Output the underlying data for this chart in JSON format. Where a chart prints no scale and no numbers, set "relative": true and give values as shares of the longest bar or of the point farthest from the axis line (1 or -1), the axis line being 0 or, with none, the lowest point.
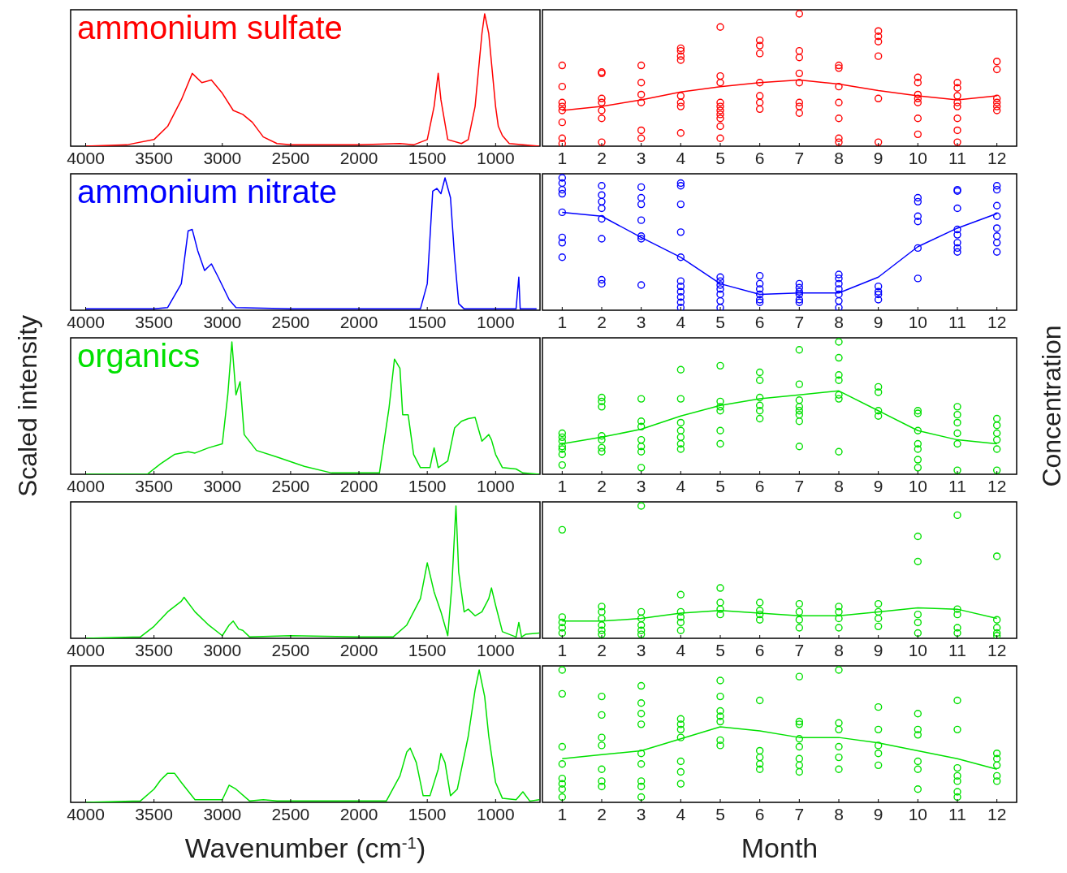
{
  "chart_data": [
    {
      "type": "line",
      "title": "ammonium sulfate",
      "color": "#ff0000",
      "relative": true,
      "xlim": [
        4110,
        675
      ],
      "xticks": [
        4000,
        3500,
        3000,
        2500,
        2000,
        1500,
        1000
      ],
      "x": [
        4000,
        3700,
        3500,
        3400,
        3300,
        3220,
        3150,
        3080,
        3000,
        2920,
        2850,
        2780,
        2700,
        2600,
        2500,
        2000,
        1700,
        1600,
        1500,
        1450,
        1420,
        1400,
        1350,
        1250,
        1200,
        1150,
        1100,
        1080,
        1050,
        1000,
        980,
        950,
        900,
        800,
        680
      ],
      "values": [
        0,
        0.01,
        0.05,
        0.15,
        0.35,
        0.55,
        0.48,
        0.5,
        0.4,
        0.27,
        0.24,
        0.18,
        0.07,
        0.02,
        0.01,
        0.01,
        0.02,
        0.01,
        0.05,
        0.3,
        0.55,
        0.35,
        0.05,
        0.02,
        0.05,
        0.3,
        0.85,
        1,
        0.85,
        0.3,
        0.15,
        0.08,
        0.02,
        0.01,
        0
      ]
    },
    {
      "type": "scatter",
      "relative": true,
      "xlim": [
        0.5,
        12.5
      ],
      "xticks": [
        1,
        2,
        3,
        4,
        5,
        6,
        7,
        8,
        9,
        10,
        11,
        12
      ],
      "series": [
        {
          "marker": "circle",
          "color": "#ff0000",
          "x": [
            1,
            1,
            1,
            1,
            1,
            1,
            1,
            1,
            2,
            2,
            2,
            2,
            2,
            2,
            2,
            3,
            3,
            3,
            3,
            3,
            3,
            4,
            4,
            4,
            4,
            4,
            4,
            4,
            4,
            5,
            5,
            5,
            5,
            5,
            5,
            5,
            5,
            5,
            5,
            6,
            6,
            6,
            6,
            6,
            6,
            6,
            7,
            7,
            7,
            7,
            7,
            7,
            7,
            7,
            8,
            8,
            8,
            8,
            8,
            8,
            8,
            9,
            9,
            9,
            9,
            9,
            9,
            10,
            10,
            10,
            10,
            10,
            10,
            10,
            11,
            11,
            11,
            11,
            11,
            11,
            11,
            11,
            12,
            12,
            12,
            12,
            12,
            12
          ],
          "values": [
            0.61,
            0.45,
            0.33,
            0.3,
            0.27,
            0.18,
            0.06,
            0.02,
            0.56,
            0.55,
            0.36,
            0.33,
            0.27,
            0.21,
            0.03,
            0.61,
            0.48,
            0.39,
            0.33,
            0.12,
            0.06,
            0.74,
            0.72,
            0.68,
            0.65,
            0.38,
            0.33,
            0.3,
            0.1,
            0.9,
            0.53,
            0.48,
            0.33,
            0.3,
            0.27,
            0.24,
            0.21,
            0.15,
            0.06,
            0.8,
            0.76,
            0.7,
            0.48,
            0.38,
            0.33,
            0.28,
            1,
            0.72,
            0.67,
            0.55,
            0.48,
            0.33,
            0.3,
            0.25,
            0.61,
            0.59,
            0.45,
            0.33,
            0.21,
            0.06,
            0.03,
            0.87,
            0.83,
            0.79,
            0.68,
            0.36,
            0.03,
            0.52,
            0.48,
            0.39,
            0.36,
            0.33,
            0.21,
            0.09,
            0.48,
            0.44,
            0.38,
            0.33,
            0.3,
            0.21,
            0.12,
            0.03,
            0.64,
            0.58,
            0.36,
            0.33,
            0.3,
            0.27
          ]
        },
        {
          "type": "line",
          "color": "#ff0000",
          "x": [
            1,
            2,
            3,
            4,
            5,
            6,
            7,
            8,
            9,
            10,
            11,
            12
          ],
          "values": [
            0.27,
            0.3,
            0.35,
            0.41,
            0.45,
            0.48,
            0.5,
            0.47,
            0.42,
            0.38,
            0.35,
            0.38
          ]
        }
      ]
    },
    {
      "type": "line",
      "title": "ammonium nitrate",
      "color": "#0000ff",
      "relative": true,
      "xlim": [
        4110,
        675
      ],
      "xticks": [
        4000,
        3500,
        3000,
        2500,
        2000,
        1500,
        1000
      ],
      "x": [
        4000,
        3500,
        3400,
        3300,
        3250,
        3220,
        3180,
        3130,
        3080,
        3030,
        2950,
        2900,
        2500,
        1550,
        1500,
        1460,
        1430,
        1400,
        1370,
        1330,
        1300,
        1270,
        1230,
        850,
        830,
        820,
        700
      ],
      "values": [
        0.01,
        0.01,
        0.02,
        0.2,
        0.6,
        0.61,
        0.45,
        0.3,
        0.35,
        0.25,
        0.08,
        0.02,
        0.01,
        0.01,
        0.2,
        0.9,
        0.92,
        0.88,
        1,
        0.85,
        0.4,
        0.05,
        0.01,
        0.01,
        0.25,
        0.01,
        0.01
      ]
    },
    {
      "type": "scatter",
      "relative": true,
      "xlim": [
        0.5,
        12.5
      ],
      "xticks": [
        1,
        2,
        3,
        4,
        5,
        6,
        7,
        8,
        9,
        10,
        11,
        12
      ],
      "series": [
        {
          "marker": "circle",
          "color": "#0000ff",
          "x": [
            1,
            1,
            1,
            1,
            1,
            1,
            1,
            1,
            2,
            2,
            2,
            2,
            2,
            2,
            2,
            2,
            3,
            3,
            3,
            3,
            3,
            3,
            3,
            4,
            4,
            4,
            4,
            4,
            4,
            4,
            4,
            4,
            4,
            4,
            5,
            5,
            5,
            5,
            5,
            5,
            5,
            6,
            6,
            6,
            6,
            6,
            6,
            7,
            7,
            7,
            7,
            7,
            7,
            8,
            8,
            8,
            8,
            8,
            8,
            8,
            9,
            9,
            9,
            9,
            10,
            10,
            10,
            10,
            10,
            10,
            11,
            11,
            11,
            11,
            11,
            11,
            11,
            11,
            12,
            12,
            12,
            12,
            12,
            12,
            12,
            12
          ],
          "values": [
            1,
            0.96,
            0.91,
            0.88,
            0.74,
            0.55,
            0.51,
            0.4,
            0.94,
            0.87,
            0.82,
            0.77,
            0.69,
            0.54,
            0.23,
            0.2,
            0.93,
            0.85,
            0.8,
            0.68,
            0.56,
            0.54,
            0.19,
            0.96,
            0.94,
            0.8,
            0.59,
            0.4,
            0.22,
            0.18,
            0.14,
            0.1,
            0.06,
            0.02,
            0.25,
            0.22,
            0.19,
            0.16,
            0.12,
            0.07,
            0.02,
            0.26,
            0.2,
            0.16,
            0.12,
            0.08,
            0.06,
            0.2,
            0.17,
            0.14,
            0.12,
            0.08,
            0.06,
            0.27,
            0.24,
            0.2,
            0.16,
            0.12,
            0.07,
            0.02,
            0.18,
            0.14,
            0.12,
            0.08,
            0.85,
            0.82,
            0.71,
            0.67,
            0.47,
            0.24,
            0.91,
            0.9,
            0.77,
            0.61,
            0.57,
            0.51,
            0.47,
            0.44,
            0.94,
            0.91,
            0.79,
            0.71,
            0.62,
            0.56,
            0.51,
            0.44
          ]
        },
        {
          "type": "line",
          "color": "#0000ff",
          "x": [
            1,
            2,
            3,
            4,
            5,
            6,
            7,
            8,
            9,
            10,
            11,
            12
          ],
          "values": [
            0.74,
            0.71,
            0.55,
            0.4,
            0.2,
            0.12,
            0.13,
            0.13,
            0.25,
            0.48,
            0.62,
            0.73
          ]
        }
      ]
    },
    {
      "type": "line",
      "title": "organics",
      "ylabel": "Scaled intensity",
      "color": "#00e000",
      "relative": true,
      "xlim": [
        4110,
        675
      ],
      "xticks": [
        4000,
        3500,
        3000,
        2500,
        2000,
        1500,
        1000
      ],
      "x": [
        4000,
        3550,
        3450,
        3350,
        3250,
        3200,
        3100,
        3000,
        2960,
        2930,
        2900,
        2870,
        2840,
        2750,
        2600,
        2400,
        2200,
        1850,
        1780,
        1740,
        1700,
        1680,
        1640,
        1600,
        1550,
        1480,
        1450,
        1420,
        1350,
        1300,
        1250,
        1200,
        1150,
        1100,
        1050,
        1030,
        1000,
        950,
        850,
        800,
        680
      ],
      "values": [
        0,
        0,
        0.08,
        0.15,
        0.17,
        0.16,
        0.2,
        0.23,
        0.6,
        1,
        0.6,
        0.7,
        0.3,
        0.18,
        0.13,
        0.06,
        0.01,
        0.01,
        0.5,
        0.87,
        0.8,
        0.45,
        0.45,
        0.15,
        0.05,
        0.05,
        0.2,
        0.05,
        0.1,
        0.35,
        0.4,
        0.42,
        0.43,
        0.25,
        0.3,
        0.26,
        0.15,
        0.05,
        0.04,
        0.01,
        0
      ]
    },
    {
      "type": "scatter",
      "ylabel": "Concentration",
      "relative": true,
      "xlim": [
        0.5,
        12.5
      ],
      "xticks": [
        1,
        2,
        3,
        4,
        5,
        6,
        7,
        8,
        9,
        10,
        11,
        12
      ],
      "series": [
        {
          "marker": "circle",
          "color": "#00e000",
          "x": [
            1,
            1,
            1,
            1,
            1,
            1,
            1,
            2,
            2,
            2,
            2,
            2,
            2,
            2,
            3,
            3,
            3,
            3,
            3,
            3,
            3,
            4,
            4,
            4,
            4,
            4,
            4,
            4,
            5,
            5,
            5,
            5,
            5,
            5,
            6,
            6,
            6,
            6,
            6,
            6,
            7,
            7,
            7,
            7,
            7,
            7,
            7,
            7,
            8,
            8,
            8,
            8,
            8,
            8,
            8,
            9,
            9,
            9,
            9,
            10,
            10,
            10,
            10,
            10,
            10,
            10,
            11,
            11,
            11,
            11,
            11,
            11,
            12,
            12,
            12,
            12,
            12,
            12
          ],
          "values": [
            0.31,
            0.28,
            0.25,
            0.21,
            0.19,
            0.15,
            0.07,
            0.58,
            0.55,
            0.51,
            0.29,
            0.26,
            0.2,
            0.17,
            0.57,
            0.4,
            0.36,
            0.26,
            0.21,
            0.17,
            0.05,
            0.79,
            0.57,
            0.39,
            0.33,
            0.28,
            0.23,
            0.19,
            0.82,
            0.55,
            0.51,
            0.48,
            0.33,
            0.23,
            0.77,
            0.71,
            0.58,
            0.52,
            0.48,
            0.42,
            0.94,
            0.68,
            0.56,
            0.51,
            0.48,
            0.45,
            0.4,
            0.21,
            1,
            0.88,
            0.75,
            0.71,
            0.6,
            0.57,
            0.17,
            0.66,
            0.62,
            0.48,
            0.44,
            0.48,
            0.46,
            0.33,
            0.23,
            0.19,
            0.11,
            0.05,
            0.51,
            0.45,
            0.39,
            0.31,
            0.23,
            0.03,
            0.42,
            0.37,
            0.31,
            0.26,
            0.19,
            0.03
          ]
        },
        {
          "type": "line",
          "color": "#00e000",
          "x": [
            1,
            2,
            3,
            4,
            5,
            6,
            7,
            8,
            9,
            10,
            11,
            12
          ],
          "values": [
            0.23,
            0.28,
            0.34,
            0.44,
            0.52,
            0.57,
            0.6,
            0.63,
            0.48,
            0.33,
            0.26,
            0.23
          ]
        }
      ]
    },
    {
      "type": "line",
      "color": "#00e000",
      "relative": true,
      "xlim": [
        4110,
        675
      ],
      "xticks": [
        4000,
        3500,
        3000,
        2500,
        2000,
        1500,
        1000
      ],
      "x": [
        4000,
        3600,
        3500,
        3400,
        3300,
        3280,
        3200,
        3100,
        3000,
        2950,
        2920,
        2880,
        2850,
        2800,
        2500,
        2000,
        1750,
        1650,
        1550,
        1500,
        1450,
        1400,
        1350,
        1320,
        1290,
        1270,
        1230,
        1200,
        1150,
        1100,
        1050,
        1030,
        1000,
        950,
        850,
        830,
        810,
        780,
        680
      ],
      "values": [
        0,
        0.01,
        0.09,
        0.2,
        0.28,
        0.31,
        0.2,
        0.1,
        0.02,
        0.1,
        0.13,
        0.07,
        0.06,
        0.01,
        0.02,
        0.01,
        0.01,
        0.1,
        0.3,
        0.57,
        0.35,
        0.2,
        0.02,
        0.4,
        1,
        0.5,
        0.2,
        0.22,
        0.17,
        0.2,
        0.3,
        0.38,
        0.25,
        0.05,
        0.01,
        0.12,
        0.01,
        0.03,
        0.04
      ]
    },
    {
      "type": "scatter",
      "relative": true,
      "xlim": [
        0.5,
        12.5
      ],
      "xticks": [
        1,
        2,
        3,
        4,
        5,
        6,
        7,
        8,
        9,
        10,
        11,
        12
      ],
      "series": [
        {
          "marker": "circle",
          "color": "#00e000",
          "x": [
            1,
            1,
            1,
            1,
            1,
            2,
            2,
            2,
            2,
            2,
            2,
            3,
            3,
            3,
            3,
            3,
            3,
            4,
            4,
            4,
            4,
            4,
            5,
            5,
            5,
            5,
            6,
            6,
            6,
            6,
            7,
            7,
            7,
            7,
            8,
            8,
            8,
            8,
            9,
            9,
            9,
            9,
            10,
            10,
            10,
            10,
            10,
            11,
            11,
            11,
            11,
            11,
            12,
            12,
            12,
            12,
            12
          ],
          "values": [
            0.82,
            0.16,
            0.12,
            0.08,
            0.04,
            0.24,
            0.2,
            0.15,
            0.1,
            0.06,
            0.03,
            1,
            0.2,
            0.15,
            0.1,
            0.06,
            0.03,
            0.33,
            0.2,
            0.16,
            0.12,
            0.06,
            0.38,
            0.27,
            0.22,
            0.18,
            0.27,
            0.21,
            0.18,
            0.14,
            0.26,
            0.2,
            0.14,
            0.08,
            0.24,
            0.2,
            0.15,
            0.08,
            0.26,
            0.2,
            0.15,
            0.09,
            0.77,
            0.58,
            0.18,
            0.12,
            0.04,
            0.93,
            0.22,
            0.18,
            0.08,
            0.04,
            0.62,
            0.14,
            0.08,
            0.04,
            0.02
          ]
        },
        {
          "type": "line",
          "color": "#00e000",
          "x": [
            1,
            2,
            3,
            4,
            5,
            6,
            7,
            8,
            9,
            10,
            11,
            12
          ],
          "values": [
            0.13,
            0.13,
            0.15,
            0.19,
            0.21,
            0.19,
            0.17,
            0.17,
            0.2,
            0.23,
            0.22,
            0.15
          ]
        }
      ]
    },
    {
      "type": "line",
      "xlabel": "Wavenumber (cm$^{-1}$)",
      "color": "#00e000",
      "relative": true,
      "xlim": [
        4110,
        675
      ],
      "xticks": [
        4000,
        3500,
        3000,
        2500,
        2000,
        1500,
        1000
      ],
      "x": [
        4000,
        3600,
        3500,
        3450,
        3400,
        3350,
        3300,
        3200,
        3000,
        2950,
        2900,
        2800,
        2700,
        2600,
        1800,
        1700,
        1650,
        1625,
        1580,
        1530,
        1480,
        1420,
        1400,
        1370,
        1330,
        1280,
        1200,
        1150,
        1120,
        1080,
        1050,
        1000,
        950,
        850,
        800,
        750,
        680
      ],
      "values": [
        0,
        0.01,
        0.1,
        0.17,
        0.22,
        0.22,
        0.15,
        0.02,
        0.02,
        0.13,
        0.1,
        0.01,
        0.02,
        0.01,
        0.01,
        0.2,
        0.38,
        0.41,
        0.3,
        0.05,
        0.05,
        0.25,
        0.37,
        0.3,
        0.05,
        0.1,
        0.5,
        0.85,
        1,
        0.8,
        0.5,
        0.15,
        0.03,
        0.02,
        0.08,
        0.01,
        0.02
      ]
    },
    {
      "type": "scatter",
      "xlabel": "Month",
      "relative": true,
      "xlim": [
        0.5,
        12.5
      ],
      "xticks": [
        1,
        2,
        3,
        4,
        5,
        6,
        7,
        8,
        9,
        10,
        11,
        12
      ],
      "series": [
        {
          "marker": "circle",
          "color": "#00e000",
          "x": [
            1,
            1,
            1,
            1,
            1,
            1,
            1,
            1,
            2,
            2,
            2,
            2,
            2,
            2,
            2,
            3,
            3,
            3,
            3,
            3,
            3,
            3,
            3,
            3,
            4,
            4,
            4,
            4,
            4,
            4,
            4,
            5,
            5,
            5,
            5,
            5,
            5,
            5,
            6,
            6,
            6,
            6,
            6,
            7,
            7,
            7,
            7,
            7,
            7,
            7,
            7,
            8,
            8,
            8,
            8,
            8,
            8,
            9,
            9,
            9,
            9,
            9,
            10,
            10,
            10,
            10,
            10,
            10,
            11,
            11,
            11,
            11,
            11,
            11,
            11,
            12,
            12,
            12,
            12,
            12
          ],
          "values": [
            1,
            0.82,
            0.42,
            0.29,
            0.18,
            0.14,
            0.1,
            0.04,
            0.8,
            0.66,
            0.49,
            0.43,
            0.25,
            0.16,
            0.12,
            0.88,
            0.75,
            0.67,
            0.59,
            0.37,
            0.29,
            0.16,
            0.12,
            0.04,
            0.63,
            0.59,
            0.55,
            0.49,
            0.31,
            0.23,
            0.14,
            0.92,
            0.8,
            0.69,
            0.65,
            0.61,
            0.47,
            0.43,
            0.77,
            0.39,
            0.34,
            0.29,
            0.25,
            0.95,
            0.61,
            0.59,
            0.48,
            0.42,
            0.33,
            0.28,
            0.23,
            1,
            0.6,
            0.55,
            0.42,
            0.34,
            0.25,
            0.72,
            0.55,
            0.43,
            0.37,
            0.28,
            0.67,
            0.55,
            0.51,
            0.31,
            0.25,
            0.1,
            0.77,
            0.55,
            0.26,
            0.2,
            0.16,
            0.08,
            0.04,
            0.37,
            0.33,
            0.28,
            0.2,
            0.16
          ]
        },
        {
          "type": "line",
          "color": "#00e000",
          "x": [
            1,
            2,
            3,
            4,
            5,
            6,
            7,
            8,
            9,
            10,
            11,
            12
          ],
          "values": [
            0.33,
            0.36,
            0.39,
            0.48,
            0.57,
            0.54,
            0.49,
            0.49,
            0.45,
            0.39,
            0.33,
            0.25
          ]
        }
      ]
    }
  ]
}
